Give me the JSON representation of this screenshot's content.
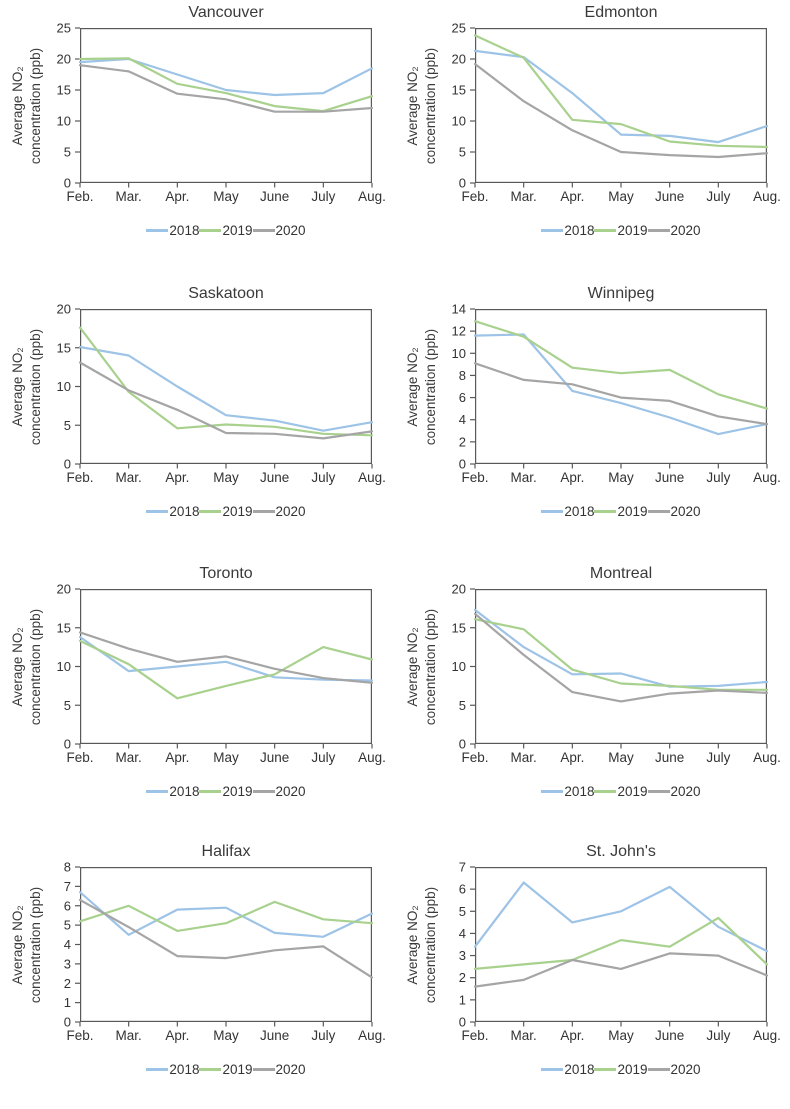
{
  "figure": {
    "description": "Grid of eight line charts of average NO2 concentration by month for Canadian cities, 2018-2020"
  },
  "axis": {
    "ylabel_line1": "Average NO₂",
    "ylabel_line2": "concentration (ppb)",
    "months": [
      "Feb.",
      "Mar.",
      "Apr.",
      "May",
      "June",
      "July",
      "Aug."
    ]
  },
  "legend": {
    "labels": [
      "2018",
      "2019",
      "2020"
    ]
  },
  "style": {
    "series_colors": {
      "2018": "#9dc3e6",
      "2019": "#a9d18e",
      "2020": "#a5a5a5"
    },
    "axis_color": "#595959",
    "text_color": "#333333",
    "background": "#ffffff"
  },
  "chart_data": [
    {
      "type": "line",
      "title": "Vancouver",
      "categories": [
        "Feb.",
        "Mar.",
        "Apr.",
        "May",
        "June",
        "July",
        "Aug."
      ],
      "ylabel": "Average NO₂ concentration (ppb)",
      "ylim": [
        0,
        25
      ],
      "ytick_step": 5,
      "grid": false,
      "legend_position": "bottom",
      "series": [
        {
          "name": "2018",
          "color": "#9dc3e6",
          "values": [
            19.5,
            20.0,
            17.5,
            15.0,
            14.2,
            14.5,
            18.5
          ]
        },
        {
          "name": "2019",
          "color": "#a9d18e",
          "values": [
            20.0,
            20.1,
            16.0,
            14.5,
            12.4,
            11.6,
            14.0
          ]
        },
        {
          "name": "2020",
          "color": "#a5a5a5",
          "values": [
            19.0,
            18.0,
            14.4,
            13.5,
            11.5,
            11.5,
            12.1
          ]
        }
      ]
    },
    {
      "type": "line",
      "title": "Edmonton",
      "categories": [
        "Feb.",
        "Mar.",
        "Apr.",
        "May",
        "June",
        "July",
        "Aug."
      ],
      "ylabel": "Average NO₂ concentration (ppb)",
      "ylim": [
        0,
        25
      ],
      "ytick_step": 5,
      "grid": false,
      "legend_position": "bottom",
      "series": [
        {
          "name": "2018",
          "color": "#9dc3e6",
          "values": [
            21.3,
            20.3,
            14.5,
            7.8,
            7.6,
            6.6,
            9.2
          ]
        },
        {
          "name": "2019",
          "color": "#a9d18e",
          "values": [
            23.8,
            20.2,
            10.2,
            9.5,
            6.7,
            6.0,
            5.8
          ]
        },
        {
          "name": "2020",
          "color": "#a5a5a5",
          "values": [
            19.2,
            13.2,
            8.5,
            5.0,
            4.5,
            4.2,
            4.8
          ]
        }
      ]
    },
    {
      "type": "line",
      "title": "Saskatoon",
      "categories": [
        "Feb.",
        "Mar.",
        "Apr.",
        "May",
        "June",
        "July",
        "Aug."
      ],
      "ylabel": "Average NO₂ concentration (ppb)",
      "ylim": [
        0,
        20
      ],
      "ytick_step": 5,
      "grid": false,
      "legend_position": "bottom",
      "series": [
        {
          "name": "2018",
          "color": "#9dc3e6",
          "values": [
            15.1,
            14.0,
            10.0,
            6.3,
            5.6,
            4.3,
            5.4
          ]
        },
        {
          "name": "2019",
          "color": "#a9d18e",
          "values": [
            17.6,
            9.3,
            4.6,
            5.1,
            4.8,
            3.9,
            3.7
          ]
        },
        {
          "name": "2020",
          "color": "#a5a5a5",
          "values": [
            13.1,
            9.5,
            7.0,
            4.0,
            3.9,
            3.3,
            4.2
          ]
        }
      ]
    },
    {
      "type": "line",
      "title": "Winnipeg",
      "categories": [
        "Feb.",
        "Mar.",
        "Apr.",
        "May",
        "June",
        "July",
        "Aug."
      ],
      "ylabel": "Average NO₂ concentration (ppb)",
      "ylim": [
        0,
        14
      ],
      "ytick_step": 2,
      "grid": false,
      "legend_position": "bottom",
      "series": [
        {
          "name": "2018",
          "color": "#9dc3e6",
          "values": [
            11.6,
            11.7,
            6.6,
            5.5,
            4.2,
            2.7,
            3.6
          ]
        },
        {
          "name": "2019",
          "color": "#a9d18e",
          "values": [
            12.9,
            11.5,
            8.7,
            8.2,
            8.5,
            6.3,
            5.0
          ]
        },
        {
          "name": "2020",
          "color": "#a5a5a5",
          "values": [
            9.1,
            7.6,
            7.2,
            6.0,
            5.7,
            4.3,
            3.6
          ]
        }
      ]
    },
    {
      "type": "line",
      "title": "Toronto",
      "categories": [
        "Feb.",
        "Mar.",
        "Apr.",
        "May",
        "June",
        "July",
        "Aug."
      ],
      "ylabel": "Average NO₂ concentration (ppb)",
      "ylim": [
        0,
        20
      ],
      "ytick_step": 5,
      "grid": false,
      "legend_position": "bottom",
      "series": [
        {
          "name": "2018",
          "color": "#9dc3e6",
          "values": [
            13.8,
            9.4,
            10.0,
            10.6,
            8.6,
            8.3,
            8.2
          ]
        },
        {
          "name": "2019",
          "color": "#a9d18e",
          "values": [
            13.3,
            10.3,
            5.9,
            7.5,
            9.0,
            12.5,
            10.9
          ]
        },
        {
          "name": "2020",
          "color": "#a5a5a5",
          "values": [
            14.4,
            12.3,
            10.6,
            11.3,
            9.7,
            8.5,
            7.9
          ]
        }
      ]
    },
    {
      "type": "line",
      "title": "Montreal",
      "categories": [
        "Feb.",
        "Mar.",
        "Apr.",
        "May",
        "June",
        "July",
        "Aug."
      ],
      "ylabel": "Average NO₂ concentration (ppb)",
      "ylim": [
        0,
        20
      ],
      "ytick_step": 5,
      "grid": false,
      "legend_position": "bottom",
      "series": [
        {
          "name": "2018",
          "color": "#9dc3e6",
          "values": [
            17.3,
            12.5,
            9.0,
            9.1,
            7.4,
            7.5,
            8.0
          ]
        },
        {
          "name": "2019",
          "color": "#a9d18e",
          "values": [
            16.1,
            14.8,
            9.6,
            7.8,
            7.5,
            7.0,
            7.0
          ]
        },
        {
          "name": "2020",
          "color": "#a5a5a5",
          "values": [
            16.8,
            11.5,
            6.7,
            5.5,
            6.5,
            6.9,
            6.6
          ]
        }
      ]
    },
    {
      "type": "line",
      "title": "Halifax",
      "categories": [
        "Feb.",
        "Mar.",
        "Apr.",
        "May",
        "June",
        "July",
        "Aug."
      ],
      "ylabel": "Average NO₂ concentration (ppb)",
      "ylim": [
        0,
        8
      ],
      "ytick_step": 1,
      "grid": false,
      "legend_position": "bottom",
      "series": [
        {
          "name": "2018",
          "color": "#9dc3e6",
          "values": [
            6.7,
            4.5,
            5.8,
            5.9,
            4.6,
            4.4,
            5.6
          ]
        },
        {
          "name": "2019",
          "color": "#a9d18e",
          "values": [
            5.2,
            6.0,
            4.7,
            5.1,
            6.2,
            5.3,
            5.1
          ]
        },
        {
          "name": "2020",
          "color": "#a5a5a5",
          "values": [
            6.3,
            4.9,
            3.4,
            3.3,
            3.7,
            3.9,
            2.3
          ]
        }
      ]
    },
    {
      "type": "line",
      "title": "St. John's",
      "categories": [
        "Feb.",
        "Mar.",
        "Apr.",
        "May",
        "June",
        "July",
        "Aug."
      ],
      "ylabel": "Average NO₂ concentration (ppb)",
      "ylim": [
        0,
        7
      ],
      "ytick_step": 1,
      "grid": false,
      "legend_position": "bottom",
      "series": [
        {
          "name": "2018",
          "color": "#9dc3e6",
          "values": [
            3.4,
            6.3,
            4.5,
            5.0,
            6.1,
            4.3,
            3.2
          ]
        },
        {
          "name": "2019",
          "color": "#a9d18e",
          "values": [
            2.4,
            2.6,
            2.8,
            3.7,
            3.4,
            4.7,
            2.6
          ]
        },
        {
          "name": "2020",
          "color": "#a5a5a5",
          "values": [
            1.6,
            1.9,
            2.8,
            2.4,
            3.1,
            3.0,
            2.1
          ]
        }
      ]
    }
  ]
}
